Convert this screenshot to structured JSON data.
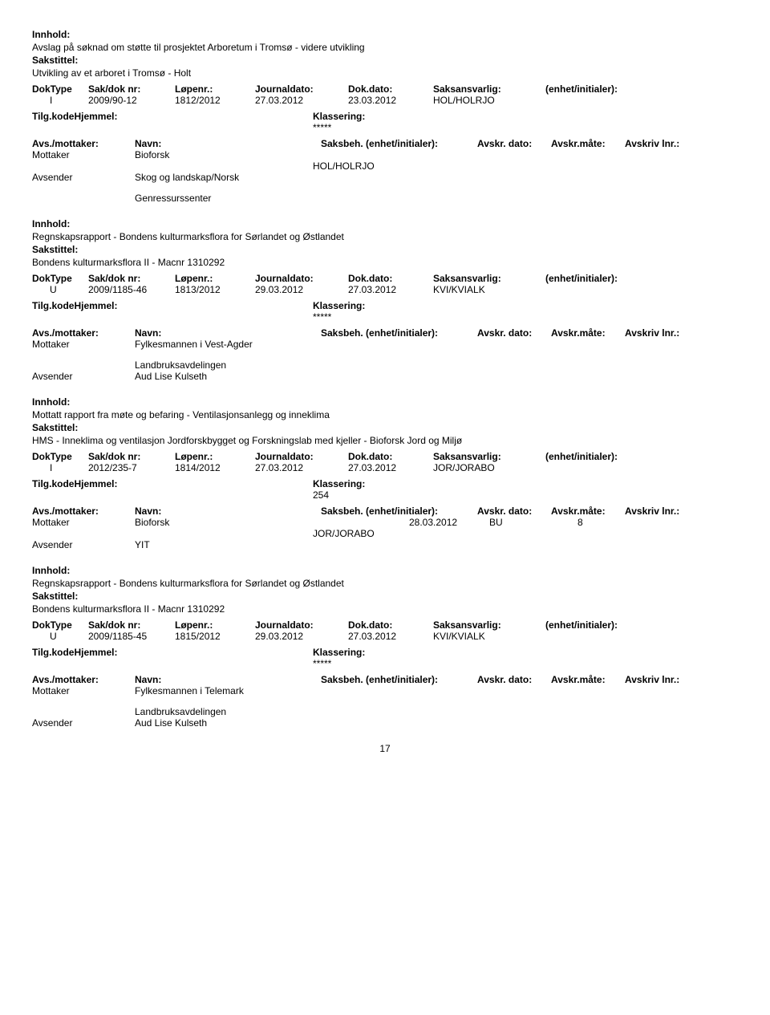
{
  "labels": {
    "innhold": "Innhold:",
    "sakstittel": "Sakstittel:",
    "hdr": {
      "doktype": "DokType",
      "sakdok": "Sak/dok nr:",
      "lopenr": "Løpenr.:",
      "jdato": "Journaldato:",
      "ddato": "Dok.dato:",
      "saksansv": "Saksansvarlig:",
      "enhetinit": "(enhet/initialer):"
    },
    "tilg": "Tilg.kode",
    "hjemmel": "Hjemmel:",
    "klassering": "Klassering:",
    "avs": "Avs./mottaker:",
    "navn": "Navn:",
    "saksbeh": "Saksbeh. (enhet/initialer):",
    "avskrdato": "Avskr. dato:",
    "avskrmate": "Avskr.måte:",
    "avskrivlnr": "Avskriv lnr.:",
    "mottaker": "Mottaker",
    "avsender": "Avsender"
  },
  "entries": [
    {
      "innhold": "Avslag på søknad om støtte til prosjektet Arboretum i Tromsø - videre utvikling",
      "sakstittel": "Utvikling av et arboret i Tromsø - Holt",
      "doktype": "I",
      "sakdok": "2009/90-12",
      "lopenr": "1812/2012",
      "jdato": "27.03.2012",
      "ddato": "23.03.2012",
      "saksansv": "HOL/HOLRJO",
      "klassering": "*****",
      "parties": [
        {
          "role": "Mottaker",
          "name": "Bioforsk"
        },
        {
          "roleBlank": true,
          "sbval": "HOL/HOLRJO"
        },
        {
          "role": "Avsender",
          "name": "Skog og landskap/Norsk"
        },
        {
          "spacer": true
        },
        {
          "name": "Genressurssenter",
          "indent": true
        }
      ]
    },
    {
      "innhold": "Regnskapsrapport - Bondens kulturmarksflora for Sørlandet og Østlandet",
      "sakstittel": "Bondens kulturmarksflora II - Macnr 1310292",
      "doktype": "U",
      "sakdok": "2009/1185-46",
      "lopenr": "1813/2012",
      "jdato": "29.03.2012",
      "ddato": "27.03.2012",
      "saksansv": "KVI/KVIALK",
      "klassering": "*****",
      "parties": [
        {
          "role": "Mottaker",
          "name": "Fylkesmannen i Vest-Agder"
        },
        {
          "spacer": true
        },
        {
          "name": "Landbruksavdelingen",
          "indent": true
        },
        {
          "role": "Avsender",
          "name": "Aud Lise Kulseth"
        }
      ]
    },
    {
      "innhold": "Mottatt rapport fra møte og befaring - Ventilasjonsanlegg og inneklima",
      "sakstittel": "HMS - Inneklima og ventilasjon Jordforskbygget og Forskningslab med kjeller - Bioforsk Jord og Miljø",
      "doktype": "I",
      "sakdok": "2012/235-7",
      "lopenr": "1814/2012",
      "jdato": "27.03.2012",
      "ddato": "27.03.2012",
      "saksansv": "JOR/JORABO",
      "klassering": "254",
      "parties": [
        {
          "role": "Mottaker",
          "name": "Bioforsk",
          "ad": "28.03.2012",
          "am": "BU",
          "ln": "8"
        },
        {
          "roleBlank": true,
          "sbval": "JOR/JORABO"
        },
        {
          "role": "Avsender",
          "name": "YIT"
        }
      ]
    },
    {
      "innhold": "Regnskapsrapport - Bondens kulturmarksflora for Sørlandet og Østlandet",
      "sakstittel": "Bondens kulturmarksflora II - Macnr 1310292",
      "doktype": "U",
      "sakdok": "2009/1185-45",
      "lopenr": "1815/2012",
      "jdato": "29.03.2012",
      "ddato": "27.03.2012",
      "saksansv": "KVI/KVIALK",
      "klassering": "*****",
      "parties": [
        {
          "role": "Mottaker",
          "name": "Fylkesmannen i Telemark"
        },
        {
          "spacer": true
        },
        {
          "name": "Landbruksavdelingen",
          "indent": true
        },
        {
          "role": "Avsender",
          "name": "Aud Lise Kulseth"
        }
      ]
    }
  ],
  "pageNumber": "17"
}
